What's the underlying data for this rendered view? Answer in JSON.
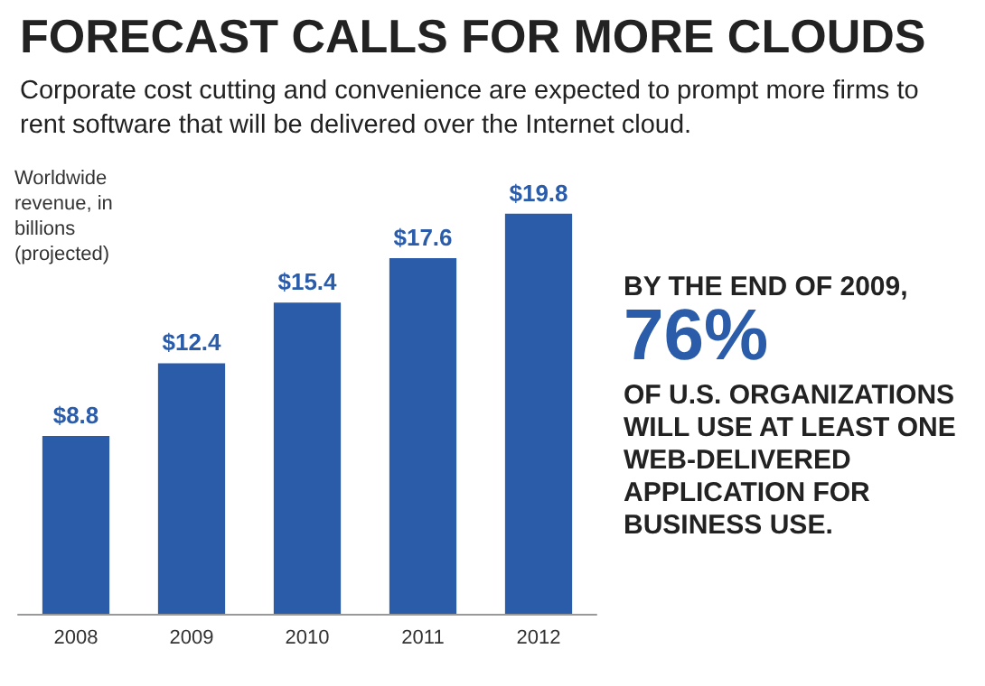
{
  "chart_data": {
    "type": "bar",
    "title": "FORECAST CALLS FOR MORE CLOUDS",
    "subtitle": "Corporate cost cutting and convenience are expected to prompt more firms to rent software that will be delivered over the Internet cloud.",
    "ylabel": "Worldwide revenue, in billions (projected)",
    "categories": [
      "2008",
      "2009",
      "2010",
      "2011",
      "2012"
    ],
    "values": [
      8.8,
      12.4,
      15.4,
      17.6,
      19.8
    ],
    "value_labels": [
      "$8.8",
      "$12.4",
      "$15.4",
      "$17.6",
      "$19.8"
    ],
    "color": "#2a5caa",
    "annotations": [
      "BY THE END OF 2009,",
      "76%",
      "OF U.S. ORGANIZATIONS WILL USE AT LEAST ONE WEB-DELIVERED APPLICATION FOR BUSINESS USE."
    ]
  }
}
